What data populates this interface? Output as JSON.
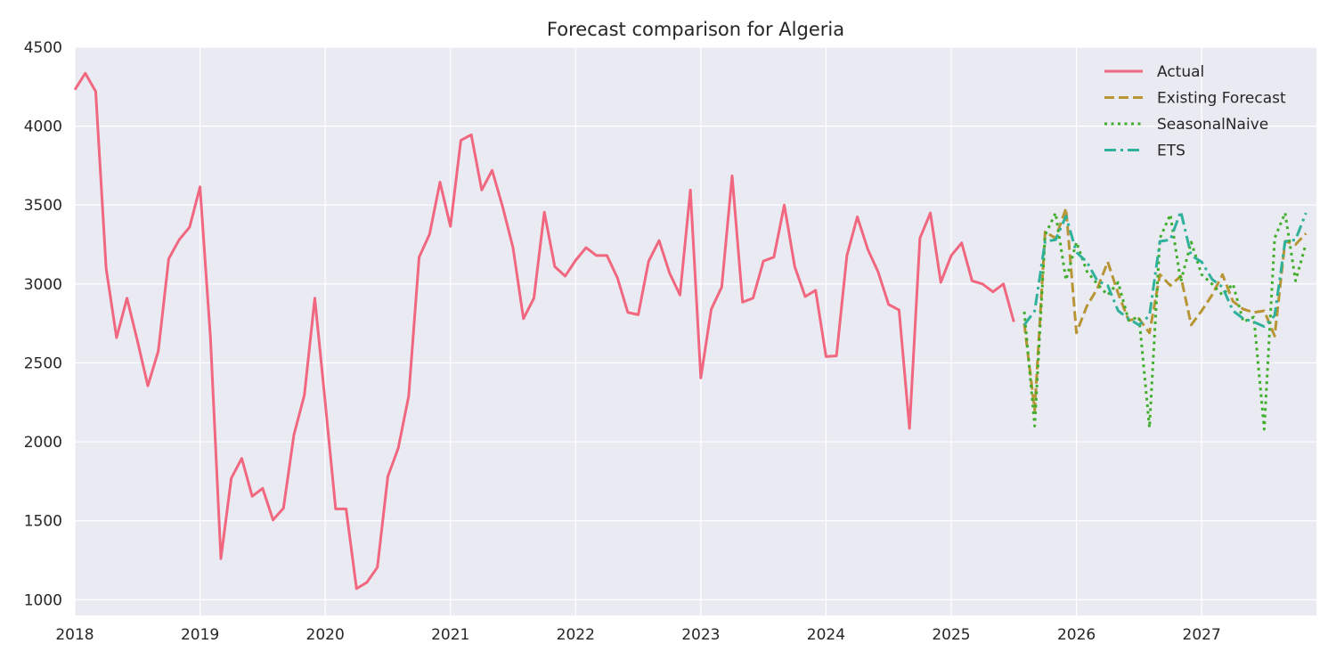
{
  "colors": {
    "plot_background": "#eaeaf2",
    "grid": "#ffffff",
    "actual": "#f0677f",
    "existing_forecast": "#b89534",
    "seasonal_naive": "#3fae2a",
    "ets": "#2fb19b"
  },
  "chart_data": {
    "type": "line",
    "title": "Forecast comparison for Algeria",
    "xlabel": "",
    "ylabel": "",
    "xlim": [
      "2018-01",
      "2027-12"
    ],
    "ylim": [
      900,
      4500
    ],
    "grid": true,
    "legend_position": "top-right",
    "x_ticks": [
      "2018",
      "2019",
      "2020",
      "2021",
      "2022",
      "2023",
      "2024",
      "2025",
      "2026",
      "2027"
    ],
    "y_ticks": [
      1000,
      1500,
      2000,
      2500,
      3000,
      3500,
      4000,
      4500
    ],
    "series": [
      {
        "name": "Actual",
        "style": "solid",
        "start": "2018-01",
        "values": [
          4230,
          4335,
          4220,
          3100,
          2660,
          2910,
          2640,
          2355,
          2575,
          3160,
          3280,
          3360,
          3615,
          2660,
          1260,
          1770,
          1895,
          1655,
          1705,
          1505,
          1580,
          2045,
          2295,
          2910,
          2250,
          1575,
          1575,
          1070,
          1110,
          1205,
          1780,
          1960,
          2290,
          3170,
          3315,
          3645,
          3365,
          3910,
          3945,
          3595,
          3720,
          3490,
          3230,
          2780,
          2910,
          3455,
          3110,
          3050,
          3150,
          3230,
          3180,
          3180,
          3040,
          2820,
          2805,
          3145,
          3275,
          3070,
          2930,
          3595,
          2405,
          2840,
          2980,
          3685,
          2885,
          2910,
          3145,
          3170,
          3500,
          3110,
          2920,
          2960,
          2540,
          2545,
          3180,
          3425,
          3220,
          3075,
          2870,
          2835,
          2085,
          3290,
          3450,
          3010,
          3180,
          3260,
          3020,
          3000,
          2950,
          3000,
          2760
        ]
      },
      {
        "name": "Existing Forecast",
        "style": "dashed",
        "start": "2025-08",
        "values": [
          2750,
          2200,
          3330,
          3290,
          3480,
          2690,
          2860,
          2970,
          3140,
          2940,
          2770,
          2780,
          2690,
          3060,
          2990,
          3050,
          2740,
          2830,
          2930,
          3060,
          2890,
          2840,
          2820,
          2830,
          2670,
          3270,
          3250,
          3320
        ]
      },
      {
        "name": "SeasonalNaive",
        "style": "dotted",
        "start": "2025-08",
        "values": [
          2825,
          2100,
          3310,
          3450,
          3025,
          3265,
          3080,
          3000,
          2930,
          3010,
          2770,
          2790,
          2090,
          3290,
          3440,
          3015,
          3265,
          3060,
          3000,
          2930,
          3000,
          2760,
          2790,
          2080,
          3290,
          3450,
          3020,
          3255
        ]
      },
      {
        "name": "ETS",
        "style": "dashdot",
        "start": "2025-08",
        "values": [
          2740,
          2830,
          3270,
          3280,
          3430,
          3200,
          3140,
          3020,
          2990,
          2830,
          2780,
          2740,
          2800,
          3270,
          3280,
          3460,
          3180,
          3140,
          3030,
          2980,
          2830,
          2780,
          2760,
          2730,
          2800,
          3270,
          3280,
          3450
        ]
      }
    ]
  }
}
